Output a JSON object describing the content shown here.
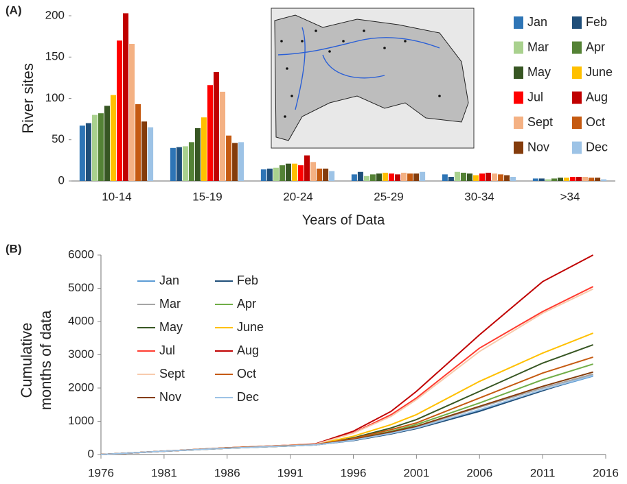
{
  "chart_data": [
    {
      "type": "bar",
      "label": "(A)",
      "ylabel": "River sites",
      "xlabel": "Years of Data",
      "categories": [
        "10-14",
        "15-19",
        "20-24",
        "25-29",
        "30-34",
        ">34"
      ],
      "ylim": [
        0,
        200
      ],
      "yticks": [
        0,
        50,
        100,
        150,
        200
      ],
      "series": [
        {
          "name": "Jan",
          "color": "#2e75b6",
          "values": [
            67,
            40,
            14,
            8,
            8,
            3
          ]
        },
        {
          "name": "Feb",
          "color": "#1f4e79",
          "values": [
            70,
            41,
            15,
            11,
            5,
            3
          ]
        },
        {
          "name": "Mar",
          "color": "#a9d18e",
          "values": [
            80,
            42,
            16,
            6,
            11,
            2
          ]
        },
        {
          "name": "Apr",
          "color": "#548235",
          "values": [
            82,
            47,
            19,
            8,
            10,
            3
          ]
        },
        {
          "name": "May",
          "color": "#375623",
          "values": [
            91,
            64,
            21,
            9,
            9,
            4
          ]
        },
        {
          "name": "June",
          "color": "#ffc000",
          "values": [
            104,
            77,
            21,
            10,
            7,
            4
          ]
        },
        {
          "name": "Jul",
          "color": "#ff0000",
          "values": [
            170,
            116,
            19,
            9,
            9,
            5
          ]
        },
        {
          "name": "Aug",
          "color": "#c00000",
          "values": [
            203,
            132,
            31,
            8,
            10,
            5
          ]
        },
        {
          "name": "Sept",
          "color": "#f4b183",
          "values": [
            166,
            108,
            23,
            10,
            9,
            5
          ]
        },
        {
          "name": "Oct",
          "color": "#c55a11",
          "values": [
            93,
            55,
            15,
            9,
            8,
            4
          ]
        },
        {
          "name": "Nov",
          "color": "#843c0c",
          "values": [
            72,
            46,
            15,
            9,
            7,
            4
          ]
        },
        {
          "name": "Dec",
          "color": "#9dc3e6",
          "values": [
            65,
            47,
            12,
            11,
            5,
            2
          ]
        }
      ]
    },
    {
      "type": "line",
      "label": "(B)",
      "ylabel_lines": [
        "Cumulative",
        "months of data"
      ],
      "x": [
        1976,
        1981,
        1986,
        1991,
        1993,
        1996,
        1999,
        2001,
        2006,
        2011,
        2015
      ],
      "xlim": [
        1976,
        2016
      ],
      "xticks": [
        1976,
        1981,
        1986,
        1991,
        1996,
        2001,
        2006,
        2011,
        2016
      ],
      "ylim": [
        0,
        6000
      ],
      "yticks": [
        0,
        1000,
        2000,
        3000,
        4000,
        5000,
        6000
      ],
      "series": [
        {
          "name": "Jan",
          "color": "#5b9bd5",
          "values": [
            0,
            100,
            190,
            260,
            290,
            430,
            630,
            790,
            1320,
            1930,
            2360
          ]
        },
        {
          "name": "Feb",
          "color": "#1f4e79",
          "values": [
            0,
            100,
            190,
            260,
            290,
            420,
            620,
            780,
            1300,
            1920,
            2400
          ]
        },
        {
          "name": "Mar",
          "color": "#a5a5a5",
          "values": [
            0,
            100,
            190,
            260,
            290,
            440,
            660,
            830,
            1420,
            2000,
            2420
          ]
        },
        {
          "name": "Apr",
          "color": "#70ad47",
          "values": [
            0,
            100,
            190,
            260,
            290,
            460,
            700,
            900,
            1550,
            2250,
            2720
          ]
        },
        {
          "name": "May",
          "color": "#375623",
          "values": [
            0,
            100,
            200,
            270,
            300,
            500,
            800,
            1050,
            1900,
            2750,
            3300
          ]
        },
        {
          "name": "June",
          "color": "#ffc000",
          "values": [
            0,
            100,
            200,
            270,
            300,
            550,
            900,
            1200,
            2200,
            3050,
            3650
          ]
        },
        {
          "name": "Jul",
          "color": "#ff3b2f",
          "values": [
            0,
            100,
            200,
            280,
            310,
            650,
            1200,
            1700,
            3200,
            4300,
            5050
          ]
        },
        {
          "name": "Aug",
          "color": "#c00000",
          "values": [
            0,
            100,
            200,
            280,
            320,
            700,
            1300,
            1900,
            3600,
            5200,
            6000
          ]
        },
        {
          "name": "Sept",
          "color": "#f8cbad",
          "values": [
            0,
            100,
            200,
            280,
            310,
            640,
            1150,
            1650,
            3100,
            4250,
            4980
          ]
        },
        {
          "name": "Oct",
          "color": "#c55a11",
          "values": [
            0,
            100,
            200,
            270,
            300,
            480,
            750,
            950,
            1700,
            2450,
            2930
          ]
        },
        {
          "name": "Nov",
          "color": "#843c0c",
          "values": [
            0,
            100,
            190,
            260,
            290,
            450,
            680,
            850,
            1450,
            2050,
            2480
          ]
        },
        {
          "name": "Dec",
          "color": "#9dc3e6",
          "values": [
            0,
            100,
            190,
            260,
            290,
            430,
            640,
            800,
            1350,
            1950,
            2380
          ]
        }
      ]
    }
  ]
}
